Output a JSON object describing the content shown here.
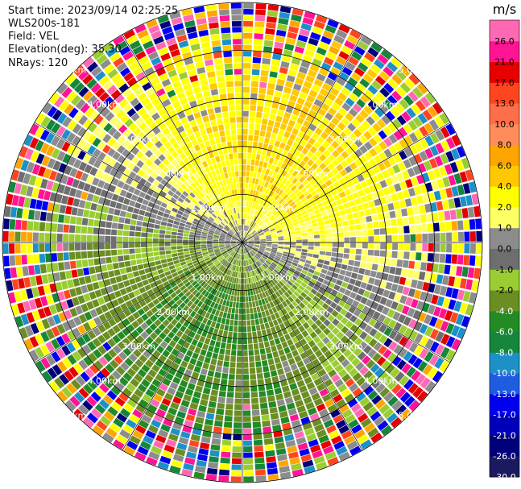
{
  "header": {
    "start_time": "Start time: 2023/09/14 02:25:25",
    "device": "WLS200s-181",
    "field": "Field: VEL",
    "elevation": "Elevation(deg): 35.30",
    "nrays": "NRays: 120"
  },
  "chart_data": {
    "type": "heatmap",
    "projection": "polar-ppi",
    "n_rays": 120,
    "range_max_km": 5.0,
    "range_rings_km": [
      1.0,
      2.0,
      3.0,
      4.0,
      5.0
    ],
    "ring_labels": [
      "1.00km",
      "2.00km",
      "3.00km",
      "4.00km",
      "5.00km"
    ],
    "radials_deg": [
      0,
      30,
      60,
      90,
      120,
      150,
      180,
      210,
      240,
      270,
      300,
      330
    ],
    "colorbar": {
      "unit": "m/s",
      "boundaries": [
        -30.0,
        -26.0,
        -21.0,
        -17.0,
        -13.0,
        -10.0,
        -8.0,
        -6.0,
        -4.0,
        -2.0,
        -1.0,
        0.0,
        1.0,
        2.0,
        4.0,
        6.0,
        8.0,
        10.0,
        13.0,
        17.0,
        21.0,
        26.0,
        30.0
      ],
      "tick_labels": [
        "-30.0",
        "-26.0",
        "-21.0",
        "-17.0",
        "-13.0",
        "-10.0",
        "-8.0",
        "-6.0",
        "-4.0",
        "-2.0",
        "-1.0",
        "0.0",
        "1.0",
        "2.0",
        "4.0",
        "6.0",
        "8.0",
        "10.0",
        "13.0",
        "17.0",
        "21.0",
        "26.0"
      ],
      "colors": [
        "#1a1a60",
        "#00007a",
        "#0000b8",
        "#0000ee",
        "#1f5de0",
        "#1e90c8",
        "#16873a",
        "#238b23",
        "#6b8e23",
        "#9acd32",
        "#6e6e6e",
        "#8c8c8c",
        "#ffff66",
        "#ffff00",
        "#ffc800",
        "#ffa500",
        "#ff8c5a",
        "#ff6e4a",
        "#ff4520",
        "#e60000",
        "#ff1493",
        "#ff69b4"
      ]
    }
  }
}
